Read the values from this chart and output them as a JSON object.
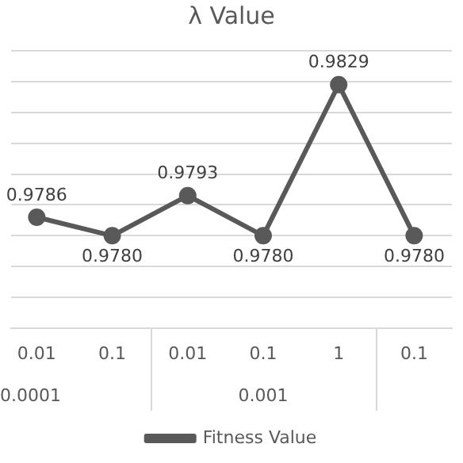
{
  "chart_data": {
    "type": "line",
    "title": "λ Value",
    "categories": [
      "0.01",
      "0.1",
      "0.01",
      "0.1",
      "1",
      "0.1"
    ],
    "series": [
      {
        "name": "Fitness Value",
        "color": "#595959",
        "values": [
          0.9786,
          0.978,
          0.9793,
          0.978,
          0.9829,
          0.978
        ],
        "value_labels": [
          "0.9786",
          "0.9780",
          "0.9793",
          "0.9780",
          "0.9829",
          "0.9780"
        ]
      }
    ],
    "ylim": [
      0.975,
      0.984
    ],
    "yticks": [
      {
        "value": 0.975,
        "label": null
      },
      {
        "value": 0.976,
        "label": null
      },
      {
        "value": 0.977,
        "label": null
      },
      {
        "value": 0.978,
        "label": null
      },
      {
        "value": 0.979,
        "label": null
      },
      {
        "value": 0.98,
        "label": null
      },
      {
        "value": 0.981,
        "label": null
      },
      {
        "value": 0.982,
        "label": null
      },
      {
        "value": 0.983,
        "label": null
      },
      {
        "value": 0.984,
        "label": null
      }
    ],
    "tick_labels": "x",
    "grid": "y",
    "legend": "bottom",
    "marker": "circle",
    "line_style": "solid",
    "annotations": [
      "0.0001",
      "0.001"
    ]
  }
}
